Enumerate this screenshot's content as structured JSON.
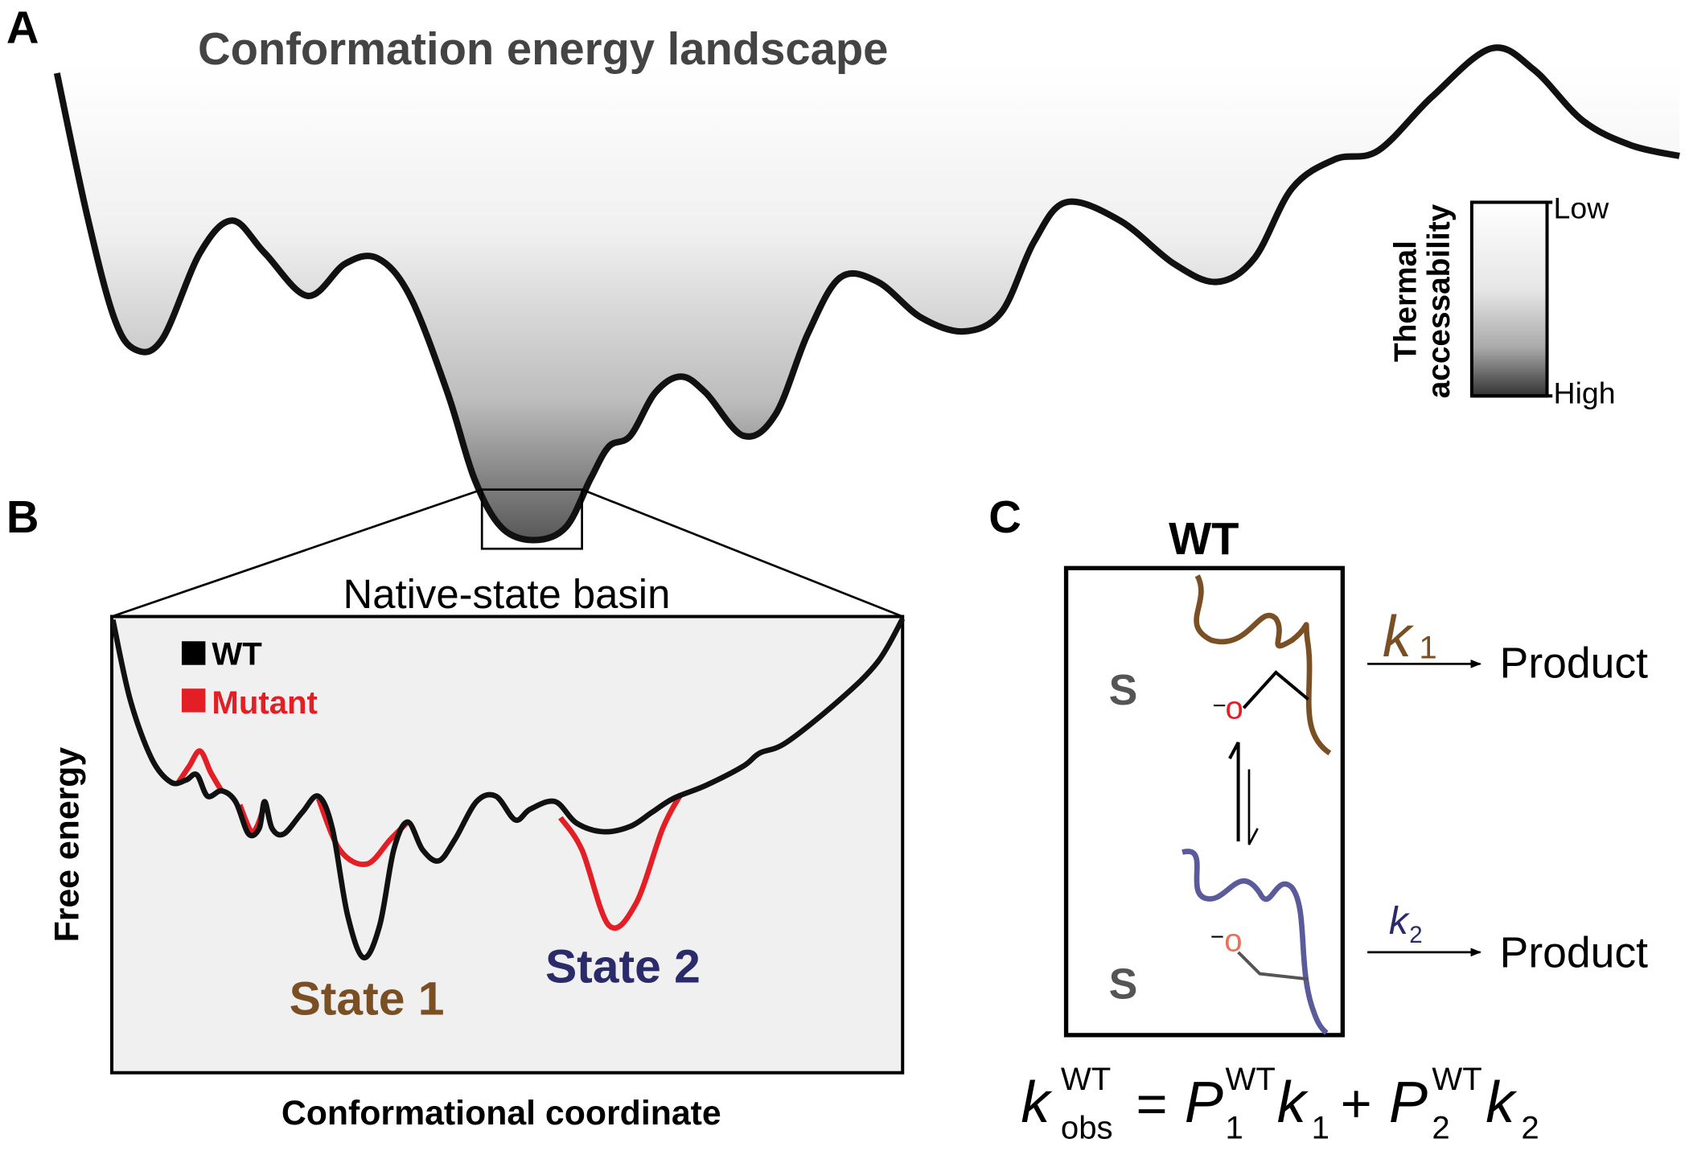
{
  "panel_a": {
    "label": "A",
    "title": "Conformation energy landscape",
    "colorbar": {
      "title_lines": [
        "Thermal",
        "accessability"
      ],
      "low": "Low",
      "high": "High"
    }
  },
  "panel_b": {
    "label": "B",
    "title": "Native-state basin",
    "legend": [
      "WT",
      "Mutant"
    ],
    "y_label": "Free energy",
    "x_label": "Conformational coordinate",
    "states": [
      "State 1",
      "State 2"
    ]
  },
  "panel_c": {
    "label": "C",
    "box_title": "WT",
    "substrates": [
      "S",
      "S"
    ],
    "states": [
      {
        "charge": "−",
        "atom": "o",
        "rate": {
          "symbol": "k",
          "subscript": "1"
        },
        "product": "Product"
      },
      {
        "charge": "−",
        "atom": "o",
        "rate": {
          "symbol": "k",
          "subscript": "2"
        },
        "product": "Product"
      }
    ],
    "equation": {
      "lhs": {
        "symbol": "k",
        "sub": "obs",
        "sup": "WT"
      },
      "equals": "=",
      "term1": {
        "symbol": "P",
        "sub": "1",
        "sup": "WT",
        "rate": "k",
        "rate_sub": "1"
      },
      "plus": "+",
      "term2": {
        "symbol": "P",
        "sub": "2",
        "sup": "WT",
        "rate": "k",
        "rate_sub": "2"
      }
    }
  }
}
